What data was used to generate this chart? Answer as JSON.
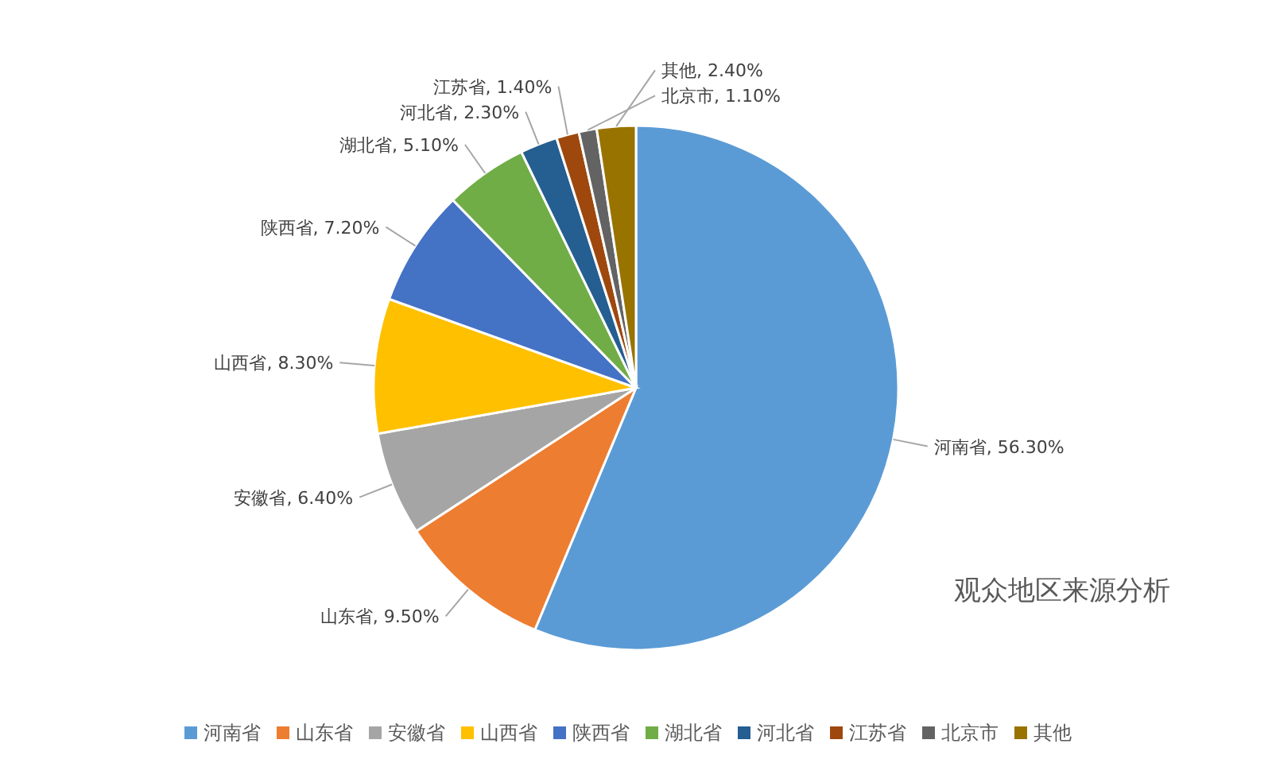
{
  "chart_data": {
    "type": "pie",
    "title": "观众地区来源分析",
    "categories": [
      "河南省",
      "山东省",
      "安徽省",
      "山西省",
      "陕西省",
      "湖北省",
      "河北省",
      "江苏省",
      "北京市",
      "其他"
    ],
    "values": [
      56.3,
      9.5,
      6.4,
      8.3,
      7.2,
      5.1,
      2.3,
      1.4,
      1.1,
      2.4
    ],
    "colors": [
      "#5b9bd5",
      "#ed7d31",
      "#a5a5a5",
      "#ffc000",
      "#4472c4",
      "#70ad47",
      "#255e91",
      "#9e480e",
      "#636363",
      "#997300"
    ],
    "value_labels": [
      "河南省, 56.30%",
      "山东省, 9.50%",
      "安徽省, 6.40%",
      "山西省, 8.30%",
      "陕西省, 7.20%",
      "湖北省, 5.10%",
      "河北省, 2.30%",
      "江苏省, 1.40%",
      "北京市, 1.10%",
      "其他, 2.40%"
    ],
    "legend": "bottom"
  }
}
